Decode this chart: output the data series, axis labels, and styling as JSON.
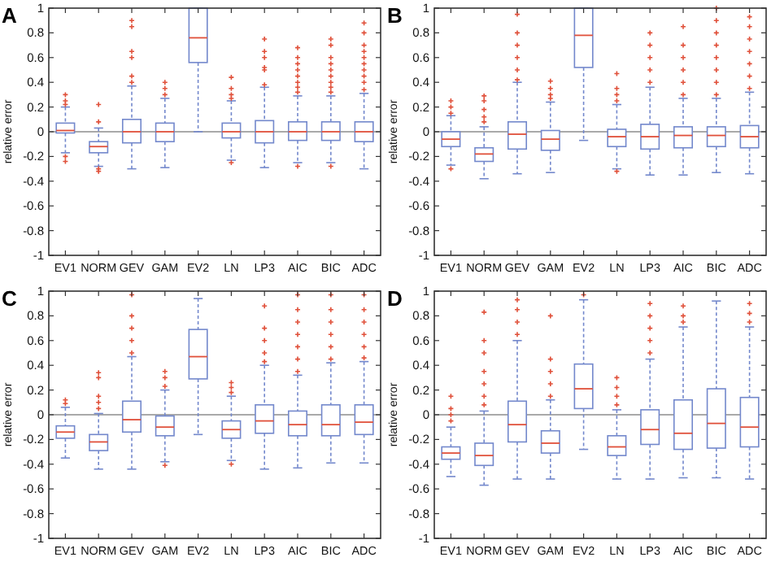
{
  "chart_data": [
    {
      "type": "box",
      "title": "A",
      "ylabel": "relative error",
      "categories": [
        "EV1",
        "NORM",
        "GEV",
        "GAM",
        "EV2",
        "LN",
        "LP3",
        "AIC",
        "BIC",
        "ADC"
      ],
      "ylim": [
        -1,
        1
      ],
      "yticks": [
        -1,
        -0.8,
        -0.6,
        -0.4,
        -0.2,
        0,
        0.2,
        0.4,
        0.6,
        0.8,
        1
      ],
      "ref_lines": [
        {
          "axis": "y",
          "value": 0,
          "color": "#8c8c8c"
        }
      ],
      "series": [
        {
          "color": "#7388cc",
          "boxes": [
            {
              "low": -0.17,
              "q1": -0.01,
              "median": 0.01,
              "q3": 0.07,
              "high": 0.2,
              "outliers": [
                0.22,
                0.25,
                0.3,
                -0.2,
                -0.24
              ]
            },
            {
              "low": -0.28,
              "q1": -0.17,
              "median": -0.12,
              "q3": -0.08,
              "high": 0.03,
              "outliers": [
                0.08,
                0.22,
                -0.3,
                -0.32
              ]
            },
            {
              "low": -0.3,
              "q1": -0.09,
              "median": 0,
              "q3": 0.1,
              "high": 0.37,
              "outliers": [
                0.4,
                0.45,
                0.6,
                0.65,
                0.85,
                0.9
              ]
            },
            {
              "low": -0.29,
              "q1": -0.08,
              "median": 0,
              "q3": 0.07,
              "high": 0.27,
              "outliers": [
                0.3,
                0.35,
                0.4
              ]
            },
            {
              "low": 0,
              "q1": 0.56,
              "median": 0.76,
              "q3": 1,
              "high": 1
            },
            {
              "low": -0.23,
              "q1": -0.05,
              "median": 0,
              "q3": 0.07,
              "high": 0.25,
              "outliers": [
                0.27,
                0.3,
                0.35,
                0.44,
                -0.25
              ]
            },
            {
              "low": -0.29,
              "q1": -0.09,
              "median": 0,
              "q3": 0.09,
              "high": 0.36,
              "outliers": [
                0.38,
                0.5,
                0.52,
                0.6,
                0.65,
                0.75
              ]
            },
            {
              "low": -0.25,
              "q1": -0.07,
              "median": 0,
              "q3": 0.08,
              "high": 0.29,
              "outliers": [
                0.32,
                0.36,
                0.4,
                0.45,
                0.5,
                0.55,
                0.6,
                0.68,
                -0.28
              ]
            },
            {
              "low": -0.25,
              "q1": -0.07,
              "median": 0,
              "q3": 0.08,
              "high": 0.29,
              "outliers": [
                0.32,
                0.36,
                0.4,
                0.45,
                0.5,
                0.55,
                0.6,
                0.7,
                0.75,
                -0.28
              ]
            },
            {
              "low": -0.3,
              "q1": -0.08,
              "median": 0,
              "q3": 0.08,
              "high": 0.31,
              "outliers": [
                0.34,
                0.4,
                0.45,
                0.5,
                0.55,
                0.6,
                0.65,
                0.7,
                0.8,
                0.88
              ]
            }
          ]
        }
      ]
    },
    {
      "type": "box",
      "title": "B",
      "ylabel": "relative error",
      "categories": [
        "EV1",
        "NORM",
        "GEV",
        "GAM",
        "EV2",
        "LN",
        "LP3",
        "AIC",
        "BIC",
        "ADC"
      ],
      "ylim": [
        -1,
        1
      ],
      "yticks": [
        -1,
        -0.8,
        -0.6,
        -0.4,
        -0.2,
        0,
        0.2,
        0.4,
        0.6,
        0.8,
        1
      ],
      "ref_lines": [
        {
          "axis": "y",
          "value": 0,
          "color": "#8c8c8c"
        }
      ],
      "series": [
        {
          "color": "#7388cc",
          "boxes": [
            {
              "low": -0.27,
              "q1": -0.12,
              "median": -0.06,
              "q3": 0,
              "high": 0.13,
              "outliers": [
                0.15,
                0.2,
                0.25,
                -0.3
              ]
            },
            {
              "low": -0.38,
              "q1": -0.24,
              "median": -0.18,
              "q3": -0.13,
              "high": 0.04,
              "outliers": [
                0.08,
                0.12,
                0.18,
                0.25,
                0.29
              ]
            },
            {
              "low": -0.34,
              "q1": -0.14,
              "median": -0.02,
              "q3": 0.08,
              "high": 0.4,
              "outliers": [
                0.42,
                0.5,
                0.6,
                0.7,
                0.8,
                0.95
              ]
            },
            {
              "low": -0.33,
              "q1": -0.15,
              "median": -0.06,
              "q3": 0.01,
              "high": 0.24,
              "outliers": [
                0.27,
                0.3,
                0.35,
                0.41
              ]
            },
            {
              "low": -0.07,
              "q1": 0.52,
              "median": 0.78,
              "q3": 1,
              "high": 1
            },
            {
              "low": -0.3,
              "q1": -0.12,
              "median": -0.04,
              "q3": 0.02,
              "high": 0.22,
              "outliers": [
                0.25,
                0.3,
                0.35,
                0.47,
                -0.32
              ]
            },
            {
              "low": -0.35,
              "q1": -0.14,
              "median": -0.04,
              "q3": 0.06,
              "high": 0.36,
              "outliers": [
                0.4,
                0.5,
                0.6,
                0.7,
                0.8
              ]
            },
            {
              "low": -0.35,
              "q1": -0.13,
              "median": -0.03,
              "q3": 0.04,
              "high": 0.27,
              "outliers": [
                0.3,
                0.4,
                0.5,
                0.6,
                0.7,
                0.85
              ]
            },
            {
              "low": -0.33,
              "q1": -0.12,
              "median": -0.03,
              "q3": 0.04,
              "high": 0.27,
              "outliers": [
                0.3,
                0.4,
                0.5,
                0.6,
                0.7,
                0.8,
                0.9,
                1
              ]
            },
            {
              "low": -0.34,
              "q1": -0.13,
              "median": -0.04,
              "q3": 0.05,
              "high": 0.32,
              "outliers": [
                0.35,
                0.45,
                0.55,
                0.65,
                0.75,
                0.85,
                0.93
              ]
            }
          ]
        }
      ]
    },
    {
      "type": "box",
      "title": "C",
      "ylabel": "relative error",
      "categories": [
        "EV1",
        "NORM",
        "GEV",
        "GAM",
        "EV2",
        "LN",
        "LP3",
        "AIC",
        "BIC",
        "ADC"
      ],
      "ylim": [
        -1,
        1
      ],
      "yticks": [
        -1,
        -0.8,
        -0.6,
        -0.4,
        -0.2,
        0,
        0.2,
        0.4,
        0.6,
        0.8,
        1
      ],
      "ref_lines": [
        {
          "axis": "y",
          "value": 0,
          "color": "#8c8c8c"
        }
      ],
      "series": [
        {
          "color": "#7388cc",
          "boxes": [
            {
              "low": -0.35,
              "q1": -0.19,
              "median": -0.14,
              "q3": -0.09,
              "high": 0.06,
              "outliers": [
                0.09,
                0.12
              ]
            },
            {
              "low": -0.44,
              "q1": -0.29,
              "median": -0.22,
              "q3": -0.16,
              "high": 0.01,
              "outliers": [
                0.05,
                0.1,
                0.15,
                0.3,
                0.34
              ]
            },
            {
              "low": -0.44,
              "q1": -0.14,
              "median": -0.04,
              "q3": 0.11,
              "high": 0.47,
              "outliers": [
                0.5,
                0.6,
                0.7,
                0.8,
                0.97
              ]
            },
            {
              "low": -0.38,
              "q1": -0.17,
              "median": -0.1,
              "q3": -0.01,
              "high": 0.2,
              "outliers": [
                0.23,
                0.3,
                0.35,
                -0.41
              ]
            },
            {
              "low": -0.16,
              "q1": 0.29,
              "median": 0.47,
              "q3": 0.69,
              "high": 0.94
            },
            {
              "low": -0.37,
              "q1": -0.19,
              "median": -0.12,
              "q3": -0.05,
              "high": 0.15,
              "outliers": [
                0.18,
                0.22,
                0.26,
                -0.4
              ]
            },
            {
              "low": -0.44,
              "q1": -0.15,
              "median": -0.05,
              "q3": 0.08,
              "high": 0.4,
              "outliers": [
                0.43,
                0.5,
                0.6,
                0.7,
                0.88
              ]
            },
            {
              "low": -0.43,
              "q1": -0.17,
              "median": -0.08,
              "q3": 0.03,
              "high": 0.32,
              "outliers": [
                0.35,
                0.45,
                0.55,
                0.65,
                0.75,
                0.85,
                0.97
              ]
            },
            {
              "low": -0.39,
              "q1": -0.17,
              "median": -0.08,
              "q3": 0.08,
              "high": 0.42,
              "outliers": [
                0.45,
                0.55,
                0.65,
                0.75,
                0.85,
                0.97
              ]
            },
            {
              "low": -0.39,
              "q1": -0.16,
              "median": -0.06,
              "q3": 0.08,
              "high": 0.43,
              "outliers": [
                0.46,
                0.55,
                0.65,
                0.75,
                0.85,
                0.97
              ]
            }
          ]
        }
      ]
    },
    {
      "type": "box",
      "title": "D",
      "ylabel": "relative error",
      "categories": [
        "EV1",
        "NORM",
        "GEV",
        "GAM",
        "EV2",
        "LN",
        "LP3",
        "AIC",
        "BIC",
        "ADC"
      ],
      "ylim": [
        -1,
        1
      ],
      "yticks": [
        -1,
        -0.8,
        -0.6,
        -0.4,
        -0.2,
        0,
        0.2,
        0.4,
        0.6,
        0.8,
        1
      ],
      "ref_lines": [
        {
          "axis": "y",
          "value": 0,
          "color": "#8c8c8c"
        }
      ],
      "series": [
        {
          "color": "#7388cc",
          "boxes": [
            {
              "low": -0.5,
              "q1": -0.36,
              "median": -0.31,
              "q3": -0.26,
              "high": -0.1,
              "outliers": [
                -0.05,
                0,
                0.05,
                0.15
              ]
            },
            {
              "low": -0.57,
              "q1": -0.41,
              "median": -0.33,
              "q3": -0.23,
              "high": 0.03,
              "outliers": [
                0.08,
                0.15,
                0.25,
                0.35,
                0.5,
                0.6,
                0.83
              ]
            },
            {
              "low": -0.52,
              "q1": -0.22,
              "median": -0.08,
              "q3": 0.11,
              "high": 0.6,
              "outliers": [
                0.65,
                0.75,
                0.85,
                0.93
              ]
            },
            {
              "low": -0.52,
              "q1": -0.31,
              "median": -0.23,
              "q3": -0.13,
              "high": 0.12,
              "outliers": [
                0.15,
                0.25,
                0.35,
                0.45,
                0.8
              ]
            },
            {
              "low": -0.28,
              "q1": 0.05,
              "median": 0.21,
              "q3": 0.41,
              "high": 0.93,
              "outliers": [
                0.97
              ]
            },
            {
              "low": -0.52,
              "q1": -0.33,
              "median": -0.26,
              "q3": -0.17,
              "high": 0.04,
              "outliers": [
                0.08,
                0.15,
                0.22,
                0.3
              ]
            },
            {
              "low": -0.52,
              "q1": -0.24,
              "median": -0.12,
              "q3": 0.04,
              "high": 0.45,
              "outliers": [
                0.5,
                0.6,
                0.7,
                0.8,
                0.9
              ]
            },
            {
              "low": -0.51,
              "q1": -0.28,
              "median": -0.15,
              "q3": 0.12,
              "high": 0.71,
              "outliers": [
                0.75,
                0.8,
                0.88
              ]
            },
            {
              "low": -0.51,
              "q1": -0.27,
              "median": -0.07,
              "q3": 0.21,
              "high": 0.92
            },
            {
              "low": -0.52,
              "q1": -0.26,
              "median": -0.1,
              "q3": 0.14,
              "high": 0.71,
              "outliers": [
                0.75,
                0.82,
                0.9
              ]
            }
          ]
        }
      ]
    }
  ]
}
